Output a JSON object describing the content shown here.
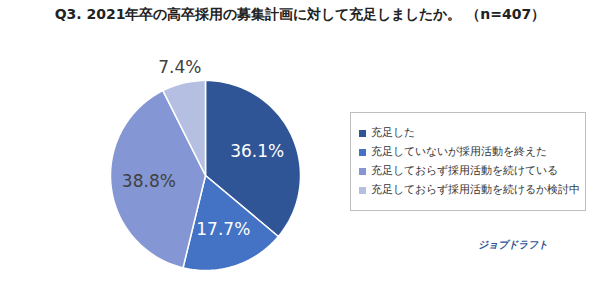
{
  "chart_data": {
    "type": "pie",
    "title": "Q3. 2021年卒の高卒採用の募集計画に対して充足しましたか。 （n=407）",
    "categories": [
      "充足した",
      "充足していないが採用活動を終えた",
      "充足しておらず採用活動を続けている",
      "充足しておらず採用活動を続けるか検討中"
    ],
    "values": [
      36.1,
      17.7,
      38.8,
      7.4
    ],
    "value_labels": [
      "36.1%",
      "17.7%",
      "38.8%",
      "7.4%"
    ],
    "colors": [
      "#2F5597",
      "#4472C4",
      "#8497D4",
      "#B4BFE2"
    ],
    "data_labels": true,
    "legend": "right",
    "annotations": [
      "ジョブドラフト"
    ]
  }
}
